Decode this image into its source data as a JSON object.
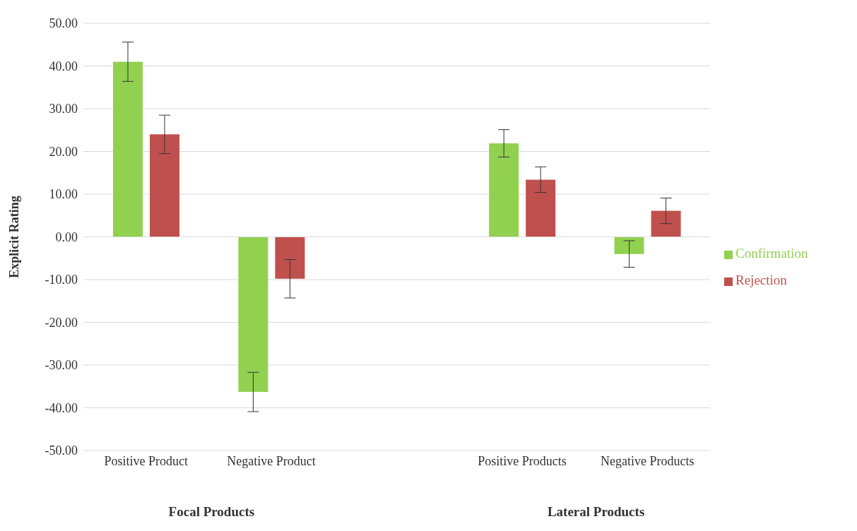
{
  "chart_data": {
    "type": "bar",
    "ylabel": "Explicit Rating",
    "categories": [
      "Positive Product",
      "Negative Product",
      null,
      "Positive Products",
      "Negative Products"
    ],
    "series": [
      {
        "name": "Confirmation",
        "color": "#92d050",
        "values": [
          41,
          -36.3,
          null,
          21.9,
          -4
        ],
        "errors": [
          4.6,
          4.6,
          null,
          3.2,
          3.1
        ]
      },
      {
        "name": "Rejection",
        "color": "#c0504d",
        "values": [
          24,
          -9.8,
          null,
          13.4,
          6.1
        ],
        "errors": [
          4.5,
          4.5,
          null,
          3,
          3
        ]
      }
    ],
    "ylim": [
      -50,
      50
    ],
    "yticks": [
      {
        "value": -50,
        "label": "-50.00"
      },
      {
        "value": -40,
        "label": "-40.00"
      },
      {
        "value": -30,
        "label": "-30.00"
      },
      {
        "value": -20,
        "label": "-20.00"
      },
      {
        "value": -10,
        "label": "-10.00"
      },
      {
        "value": 0,
        "label": "0.00"
      },
      {
        "value": 10,
        "label": "10.00"
      },
      {
        "value": 20,
        "label": "20.00"
      },
      {
        "value": 30,
        "label": "30.00"
      },
      {
        "value": 40,
        "label": "40.00"
      },
      {
        "value": 50,
        "label": "50.00"
      }
    ],
    "grid": "y",
    "legend": "right",
    "annotations": [
      "Focal Products",
      "Lateral Products"
    ]
  }
}
